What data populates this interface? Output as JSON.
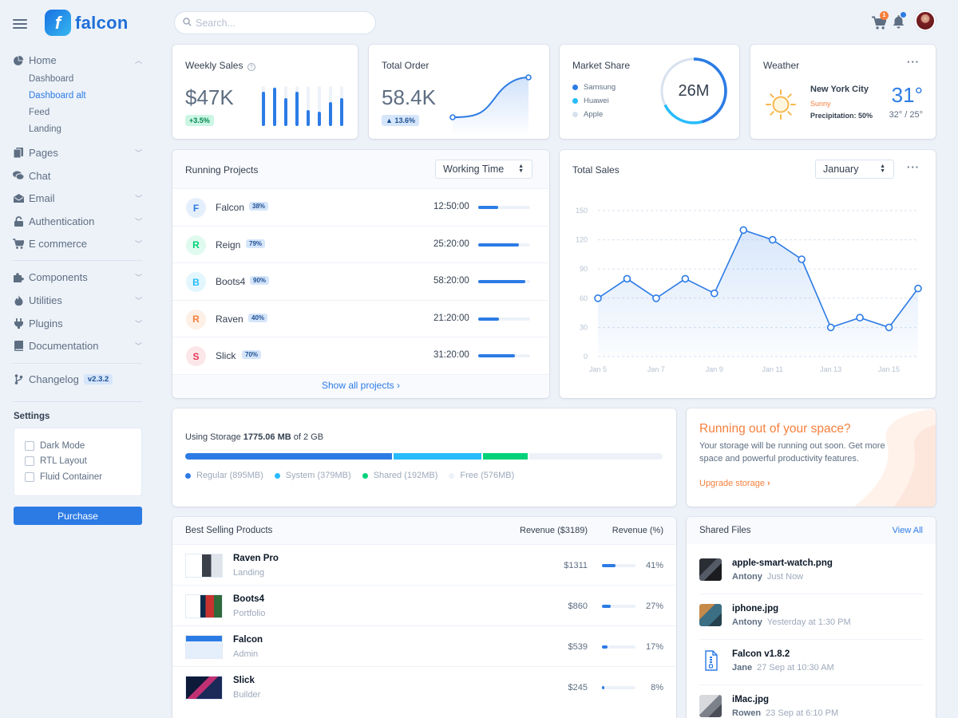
{
  "app": {
    "name": "falcon",
    "logo_letter": "f"
  },
  "sidebar": {
    "home_label": "Home",
    "home_sub": [
      "Dashboard",
      "Dashboard alt",
      "Feed",
      "Landing"
    ],
    "items": [
      {
        "label": "Pages",
        "icon": "pages-icon"
      },
      {
        "label": "Chat",
        "icon": "chat-icon"
      },
      {
        "label": "Email",
        "icon": "email-icon"
      },
      {
        "label": "Authentication",
        "icon": "lock-icon"
      },
      {
        "label": "E commerce",
        "icon": "cart-icon"
      }
    ],
    "items2": [
      {
        "label": "Components",
        "icon": "puzzle-icon"
      },
      {
        "label": "Utilities",
        "icon": "fire-icon"
      },
      {
        "label": "Plugins",
        "icon": "plug-icon"
      },
      {
        "label": "Documentation",
        "icon": "book-icon"
      }
    ],
    "changelog": "Changelog",
    "version": "v2.3.2",
    "settings_title": "Settings",
    "settings": [
      "Dark Mode",
      "RTL Layout",
      "Fluid Container"
    ],
    "purchase": "Purchase"
  },
  "topbar": {
    "search_placeholder": "Search...",
    "cart_count": "1"
  },
  "weekly_sales": {
    "title": "Weekly Sales",
    "value": "$47K",
    "change": "+3.5%",
    "bars": [
      0.85,
      0.95,
      0.7,
      0.85,
      0.4,
      0.35,
      0.6,
      0.7
    ]
  },
  "total_order": {
    "title": "Total Order",
    "value": "58.4K",
    "change": "13.6%"
  },
  "market_share": {
    "title": "Market Share",
    "value": "26M",
    "legend": [
      {
        "name": "Samsung",
        "color": "#2c7be5"
      },
      {
        "name": "Huawei",
        "color": "#27bcfd"
      },
      {
        "name": "Apple",
        "color": "#d8e2ef"
      }
    ]
  },
  "weather": {
    "title": "Weather",
    "city": "New York City",
    "condition": "Sunny",
    "precip_label": "Precipitation: 50%",
    "temp": "31°",
    "range": "32° / 25°"
  },
  "running_projects": {
    "title": "Running Projects",
    "select": "Working Time",
    "rows": [
      {
        "letter": "F",
        "name": "Falcon",
        "pct": "38%",
        "time": "12:50:00",
        "progress": 0.38,
        "bg": "#e5effc",
        "fg": "#2c7be5"
      },
      {
        "letter": "R",
        "name": "Reign",
        "pct": "79%",
        "time": "25:20:00",
        "progress": 0.79,
        "bg": "#e0faef",
        "fg": "#00d27a"
      },
      {
        "letter": "B",
        "name": "Boots4",
        "pct": "90%",
        "time": "58:20:00",
        "progress": 0.9,
        "bg": "#e3f6fd",
        "fg": "#27bcfd"
      },
      {
        "letter": "R",
        "name": "Raven",
        "pct": "40%",
        "time": "21:20:00",
        "progress": 0.4,
        "bg": "#fdf0e6",
        "fg": "#f5803e"
      },
      {
        "letter": "S",
        "name": "Slick",
        "pct": "70%",
        "time": "31:20:00",
        "progress": 0.7,
        "bg": "#fbe7ea",
        "fg": "#e63757"
      }
    ],
    "footer": "Show all projects"
  },
  "total_sales": {
    "title": "Total Sales",
    "select": "January"
  },
  "chart_data": {
    "type": "area",
    "x": [
      "Jan 5",
      "Jan 6",
      "Jan 7",
      "Jan 8",
      "Jan 9",
      "Jan 10",
      "Jan 11",
      "Jan 12",
      "Jan 13",
      "Jan 14",
      "Jan 15",
      "Jan 16"
    ],
    "values": [
      60,
      80,
      60,
      80,
      65,
      130,
      120,
      100,
      30,
      40,
      30,
      70
    ],
    "xticks": [
      "Jan 5",
      "Jan 7",
      "Jan 9",
      "Jan 11",
      "Jan 13",
      "Jan 15"
    ],
    "yticks": [
      "0",
      "30",
      "60",
      "90",
      "120",
      "150"
    ],
    "ylim": [
      0,
      150
    ],
    "color": "#2c7be5"
  },
  "storage": {
    "label": "Using Storage",
    "used": "1775.06 MB",
    "of_label": "of 2 GB",
    "segments": [
      {
        "name": "Regular (895MB)",
        "value": 895,
        "color": "#2c7be5"
      },
      {
        "name": "System (379MB)",
        "value": 379,
        "color": "#27bcfd"
      },
      {
        "name": "Shared (192MB)",
        "value": 192,
        "color": "#00d27a"
      },
      {
        "name": "Free (576MB)",
        "value": 576,
        "color": "#edf2f9"
      }
    ]
  },
  "space_promo": {
    "title": "Running out of your space?",
    "text": "Your storage will be running out soon. Get more space and powerful productivity features.",
    "link": "Upgrade storage"
  },
  "best_selling": {
    "title": "Best Selling Products",
    "col1": "Revenue ($3189)",
    "col2": "Revenue (%)",
    "rows": [
      {
        "name": "Raven Pro",
        "sub": "Landing",
        "rev": "$1311",
        "pct": "41%",
        "progress": 0.41
      },
      {
        "name": "Boots4",
        "sub": "Portfolio",
        "rev": "$860",
        "pct": "27%",
        "progress": 0.27
      },
      {
        "name": "Falcon",
        "sub": "Admin",
        "rev": "$539",
        "pct": "17%",
        "progress": 0.17
      },
      {
        "name": "Slick",
        "sub": "Builder",
        "rev": "$245",
        "pct": "8%",
        "progress": 0.08
      }
    ]
  },
  "shared_files": {
    "title": "Shared Files",
    "view_all": "View All",
    "files": [
      {
        "name": "apple-smart-watch.png",
        "user": "Antony",
        "time": "Just Now"
      },
      {
        "name": "iphone.jpg",
        "user": "Antony",
        "time": "Yesterday at 1:30 PM"
      },
      {
        "name": "Falcon v1.8.2",
        "user": "Jane",
        "time": "27 Sep at 10:30 AM"
      },
      {
        "name": "iMac.jpg",
        "user": "Rowen",
        "time": "23 Sep at 6:10 PM"
      }
    ]
  }
}
